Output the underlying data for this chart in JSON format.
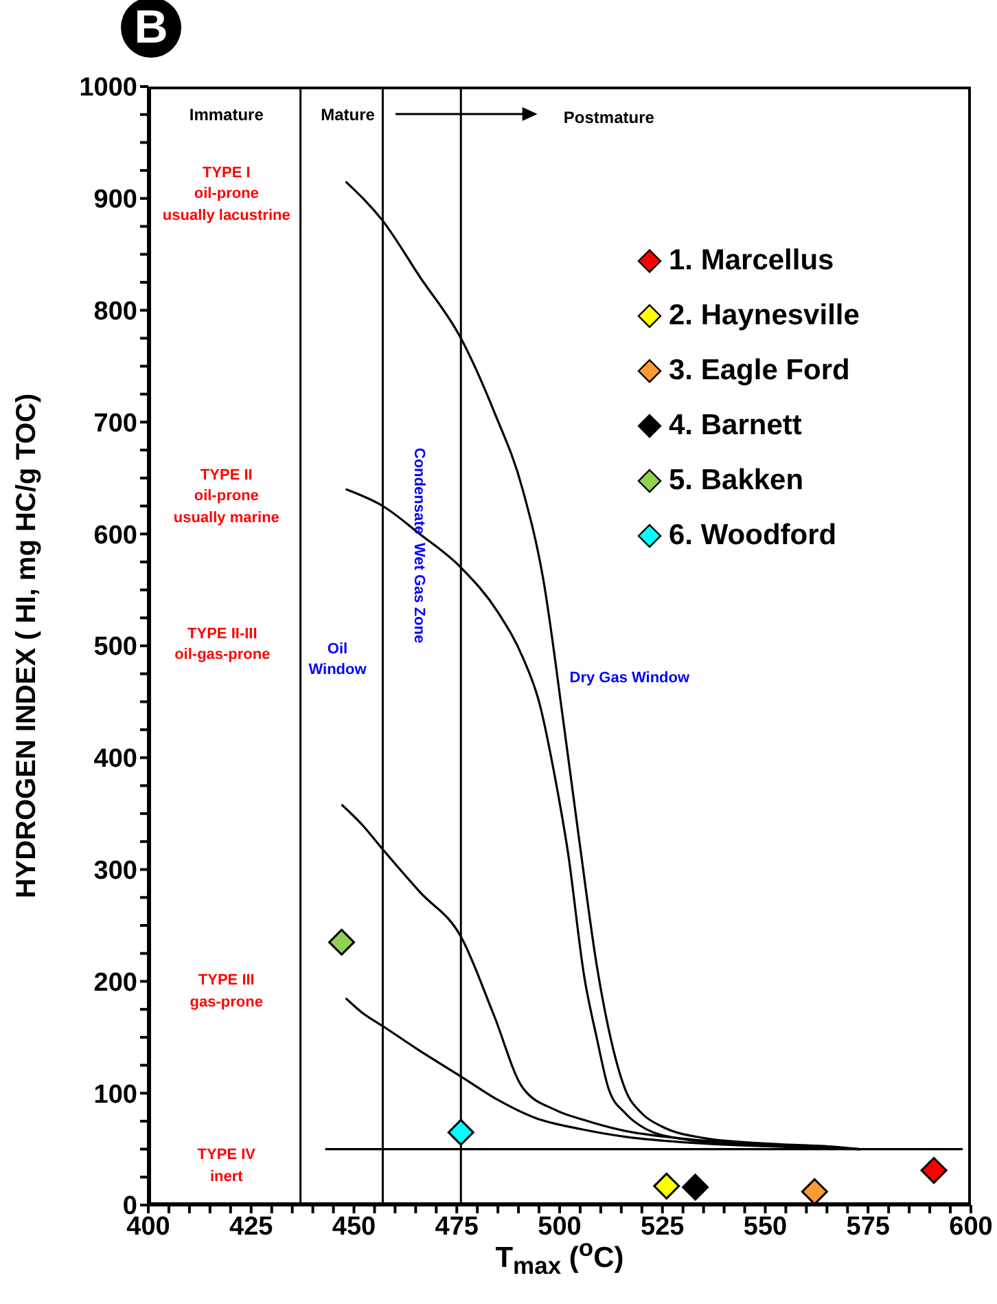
{
  "chart_data": {
    "type": "scatter",
    "xlabel": "T$_{max}$ ($^{o}$C)",
    "ylabel": "HYDROGEN INDEX ( HI, mg HC/g TOC)",
    "xlim": [
      400,
      600
    ],
    "ylim": [
      0,
      1000
    ],
    "xticks": [
      400,
      {
        "value": 405,
        "label": null
      },
      {
        "value": 410,
        "label": null
      },
      {
        "value": 415,
        "label": null
      },
      {
        "value": 420,
        "label": null
      },
      425,
      {
        "value": 430,
        "label": null
      },
      {
        "value": 435,
        "label": null
      },
      {
        "value": 440,
        "label": null
      },
      {
        "value": 445,
        "label": null
      },
      450,
      {
        "value": 455,
        "label": null
      },
      {
        "value": 460,
        "label": null
      },
      {
        "value": 465,
        "label": null
      },
      {
        "value": 470,
        "label": null
      },
      475,
      {
        "value": 480,
        "label": null
      },
      {
        "value": 485,
        "label": null
      },
      {
        "value": 490,
        "label": null
      },
      {
        "value": 495,
        "label": null
      },
      500,
      {
        "value": 505,
        "label": null
      },
      {
        "value": 510,
        "label": null
      },
      {
        "value": 515,
        "label": null
      },
      {
        "value": 520,
        "label": null
      },
      525,
      {
        "value": 530,
        "label": null
      },
      {
        "value": 535,
        "label": null
      },
      {
        "value": 540,
        "label": null
      },
      {
        "value": 545,
        "label": null
      },
      550,
      {
        "value": 555,
        "label": null
      },
      {
        "value": 560,
        "label": null
      },
      {
        "value": 565,
        "label": null
      },
      {
        "value": 570,
        "label": null
      },
      575,
      {
        "value": 580,
        "label": null
      },
      {
        "value": 585,
        "label": null
      },
      {
        "value": 590,
        "label": null
      },
      {
        "value": 595,
        "label": null
      },
      600
    ],
    "yticks": [
      0,
      {
        "value": 25,
        "label": null
      },
      {
        "value": 50,
        "label": null
      },
      {
        "value": 75,
        "label": null
      },
      100,
      {
        "value": 125,
        "label": null
      },
      {
        "value": 150,
        "label": null
      },
      {
        "value": 175,
        "label": null
      },
      200,
      {
        "value": 225,
        "label": null
      },
      {
        "value": 250,
        "label": null
      },
      {
        "value": 275,
        "label": null
      },
      300,
      {
        "value": 325,
        "label": null
      },
      {
        "value": 350,
        "label": null
      },
      {
        "value": 375,
        "label": null
      },
      400,
      {
        "value": 425,
        "label": null
      },
      {
        "value": 450,
        "label": null
      },
      {
        "value": 475,
        "label": null
      },
      500,
      {
        "value": 525,
        "label": null
      },
      {
        "value": 550,
        "label": null
      },
      {
        "value": 575,
        "label": null
      },
      600,
      {
        "value": 625,
        "label": null
      },
      {
        "value": 650,
        "label": null
      },
      {
        "value": 675,
        "label": null
      },
      700,
      {
        "value": 725,
        "label": null
      },
      {
        "value": 750,
        "label": null
      },
      {
        "value": 775,
        "label": null
      },
      800,
      {
        "value": 825,
        "label": null
      },
      {
        "value": 850,
        "label": null
      },
      {
        "value": 875,
        "label": null
      },
      900,
      {
        "value": 925,
        "label": null
      },
      {
        "value": 950,
        "label": null
      },
      {
        "value": 975,
        "label": null
      },
      1000
    ],
    "marker": "diamond",
    "legend": "top right",
    "grid": false,
    "series": [
      {
        "name": "1. Marcellus",
        "color": "#ff0000",
        "x": [
          591
        ],
        "values": [
          31
        ]
      },
      {
        "name": "2. Haynesville",
        "color": "#ffff00",
        "x": [
          526
        ],
        "values": [
          17
        ]
      },
      {
        "name": "3. Eagle Ford",
        "color": "#ff9933",
        "x": [
          562
        ],
        "values": [
          12
        ]
      },
      {
        "name": "4. Barnett",
        "color": "#000000",
        "x": [
          533
        ],
        "values": [
          16
        ]
      },
      {
        "name": "5. Bakken",
        "color": "#92d050",
        "x": [
          447
        ],
        "values": [
          235
        ]
      },
      {
        "name": "6. Woodford",
        "color": "#00ffff",
        "x": [
          476
        ],
        "values": [
          65
        ]
      },
      {
        "type": "line",
        "marker": "none",
        "color": "#000000",
        "x": [
          448,
          457,
          466,
          476,
          484,
          491,
          496,
          501,
          505,
          509,
          513,
          516,
          520,
          525,
          535,
          550,
          567,
          573
        ],
        "values": [
          915,
          880,
          830,
          775,
          710,
          640,
          560,
          430,
          320,
          215,
          140,
          103,
          82,
          70,
          60,
          55,
          52,
          50
        ]
      },
      {
        "type": "line",
        "marker": "none",
        "color": "#000000",
        "x": [
          448,
          457,
          466,
          476,
          485,
          491,
          495,
          499,
          502,
          506,
          509,
          512,
          516,
          521,
          530,
          545,
          560,
          573
        ],
        "values": [
          640,
          625,
          600,
          570,
          530,
          490,
          450,
          380,
          316,
          204,
          150,
          103,
          82,
          68,
          59,
          54,
          52,
          50
        ]
      },
      {
        "type": "line",
        "marker": "none",
        "color": "#000000",
        "x": [
          447,
          452,
          457,
          466,
          476,
          484,
          491,
          499,
          506,
          515,
          531,
          550,
          573
        ],
        "values": [
          358,
          340,
          318,
          280,
          240,
          170,
          105,
          85,
          76,
          67,
          59,
          54,
          50
        ]
      },
      {
        "type": "line",
        "marker": "none",
        "color": "#000000",
        "x": [
          448,
          452,
          457,
          466,
          476,
          485,
          494,
          505,
          516,
          535,
          555,
          573
        ],
        "values": [
          185,
          172,
          160,
          138,
          115,
          94,
          78,
          68,
          61,
          55,
          52,
          50
        ]
      },
      {
        "type": "line",
        "marker": "none",
        "color": "#000000",
        "x": [
          443,
          598
        ],
        "values": [
          50,
          50
        ]
      }
    ],
    "ref_lines": [
      {
        "axis": "x",
        "value": 437,
        "color": "#000000"
      },
      {
        "axis": "x",
        "value": 457,
        "color": "#000000"
      },
      {
        "axis": "x",
        "value": 476,
        "color": "#000000"
      }
    ],
    "annotations": [
      "B",
      "Immature",
      "Mature",
      "Postmature",
      "TYPE I\noil-prone\nusually lacustrine",
      "TYPE II\noil-prone\nusually marine",
      "TYPE II-III\noil-gas-prone",
      "TYPE III\ngas-prone",
      "TYPE IV\ninert",
      "Oil\nWindow",
      "Condensate  Wet Gas Zone",
      "Dry Gas Window"
    ]
  }
}
